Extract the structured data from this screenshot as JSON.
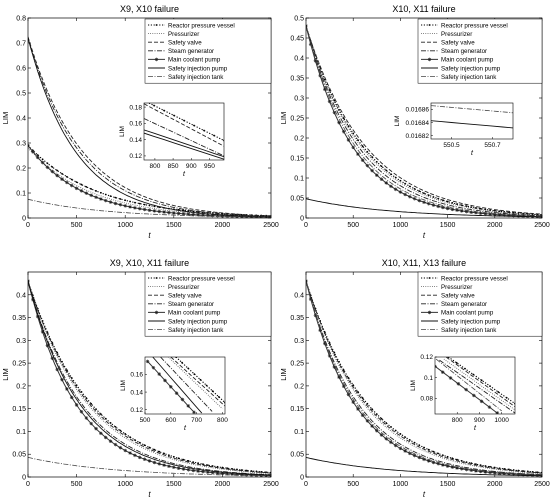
{
  "series_styles": {
    "Reactor pressure vessel": {
      "dash": "1.2,1.6",
      "width": 1.1,
      "color": "#000000",
      "marker": "dot"
    },
    "Pressurizer": {
      "dash": "0.8,1.4",
      "width": 0.9,
      "color": "#555555",
      "marker": "none"
    },
    "Safety valve": {
      "dash": "4,2",
      "width": 0.9,
      "color": "#222222",
      "marker": "none"
    },
    "Steam generator": {
      "dash": "5,1.5,1,1.5",
      "width": 0.9,
      "color": "#222222",
      "marker": "none"
    },
    "Main coolant pump": {
      "dash": "",
      "width": 1.0,
      "color": "#333333",
      "marker": "star"
    },
    "Safety injection pump": {
      "dash": "",
      "width": 0.9,
      "color": "#111111",
      "marker": "none"
    },
    "Safety injection tank": {
      "dash": "5,1.5,1,1.5",
      "width": 0.8,
      "color": "#444444",
      "marker": "none"
    }
  },
  "chart_data": [
    {
      "type": "line",
      "title": "X9, X10 failure",
      "xlabel": "t",
      "ylabel": "LIM",
      "xlim": [
        0,
        2500
      ],
      "ylim": [
        0,
        0.8
      ],
      "xticks": [
        0,
        500,
        1000,
        1500,
        2000,
        2500
      ],
      "yticks": [
        0,
        0.1,
        0.2,
        0.3,
        0.4,
        0.5,
        0.6,
        0.7,
        0.8
      ],
      "ytick_labels": [
        "0",
        "0.1",
        "0.2",
        "0.3",
        "0.4",
        "0.5",
        "0.6",
        "0.7",
        "0.8"
      ],
      "legend": "top-right",
      "series": [
        {
          "name": "Reactor pressure vessel",
          "y0": 0.29,
          "tau": 710
        },
        {
          "name": "Pressurizer",
          "y0": 0.28,
          "tau": 650
        },
        {
          "name": "Safety valve",
          "y0": 0.725,
          "tau": 560
        },
        {
          "name": "Steam generator",
          "y0": 0.72,
          "tau": 530
        },
        {
          "name": "Main coolant pump",
          "y0": 0.29,
          "tau": 560
        },
        {
          "name": "Safety injection pump",
          "y0": 0.72,
          "tau": 490
        },
        {
          "name": "Safety injection tank",
          "y0": 0.075,
          "tau": 800
        }
      ],
      "inset": {
        "xlim": [
          770,
          990
        ],
        "ylim": [
          0.115,
          0.185
        ],
        "xticks": [
          800,
          850,
          900,
          950
        ],
        "yticks": [
          0.12,
          0.14,
          0.16,
          0.18
        ],
        "ytick_labels": [
          "0.12",
          "0.14",
          "0.16",
          "0.18"
        ],
        "xlabel": "t",
        "ylabel": "LIM",
        "series": [
          {
            "name": "Safety valve",
            "x": [
              770,
              990
            ],
            "y": [
              0.184,
              0.132
            ]
          },
          {
            "name": "Steam generator",
            "x": [
              770,
              990
            ],
            "y": [
              0.166,
              0.12
            ]
          },
          {
            "name": "Safety injection pump",
            "x": [
              770,
              990
            ],
            "y": [
              0.148,
              0.116
            ]
          },
          {
            "name": "Safety injection pump",
            "x": [
              770,
              990
            ],
            "y": [
              0.152,
              0.119
            ]
          },
          {
            "name": "Reactor pressure vessel",
            "x": [
              770,
              990
            ],
            "y": [
              0.188,
              0.139
            ]
          }
        ]
      }
    },
    {
      "type": "line",
      "title": "X10, X11 failure",
      "xlabel": "t",
      "ylabel": "LIM",
      "xlim": [
        0,
        2500
      ],
      "ylim": [
        0,
        0.5
      ],
      "xticks": [
        0,
        500,
        1000,
        1500,
        2000,
        2500
      ],
      "yticks": [
        0,
        0.05,
        0.1,
        0.15,
        0.2,
        0.25,
        0.3,
        0.35,
        0.4,
        0.45,
        0.5
      ],
      "ytick_labels": [
        "0",
        "0.05",
        "0.1",
        "0.15",
        "0.2",
        "0.25",
        "0.3",
        "0.35",
        "0.4",
        "0.45",
        "0.5"
      ],
      "legend": "top-right",
      "series": [
        {
          "name": "Reactor pressure vessel",
          "y0": 0.48,
          "tau": 610
        },
        {
          "name": "Pressurizer",
          "y0": 0.48,
          "tau": 590
        },
        {
          "name": "Safety valve",
          "y0": 0.48,
          "tau": 640
        },
        {
          "name": "Steam generator",
          "y0": 0.48,
          "tau": 560
        },
        {
          "name": "Main coolant pump",
          "y0": 0.48,
          "tau": 500
        },
        {
          "name": "Safety injection pump",
          "y0": 0.048,
          "tau": 900
        },
        {
          "name": "Safety injection tank",
          "y0": 0.48,
          "tau": 530
        }
      ],
      "inset": {
        "xlim": [
          550.4,
          550.8
        ],
        "ylim": [
          0.016815,
          0.01687
        ],
        "xticks": [
          550.5,
          550.7
        ],
        "yticks": [
          0.01682,
          0.01684,
          0.01686
        ],
        "ytick_labels": [
          "0.01682",
          "0.01684",
          "0.01686"
        ],
        "xlabel": "t",
        "ylabel": "LIM",
        "series": [
          {
            "name": "Safety injection tank",
            "x": [
              550.4,
              550.8
            ],
            "y": [
              0.016866,
              0.016855
            ]
          },
          {
            "name": "Safety injection pump",
            "x": [
              550.4,
              550.8
            ],
            "y": [
              0.016843,
              0.016832
            ]
          }
        ]
      }
    },
    {
      "type": "line",
      "title": "X9, X10, X11 failure",
      "xlabel": "t",
      "ylabel": "LIM",
      "xlim": [
        0,
        2500
      ],
      "ylim": [
        0,
        0.45
      ],
      "xticks": [
        0,
        500,
        1000,
        1500,
        2000,
        2500
      ],
      "yticks": [
        0,
        0.05,
        0.1,
        0.15,
        0.2,
        0.25,
        0.3,
        0.35,
        0.4
      ],
      "ytick_labels": [
        "0",
        "0.05",
        "0.1",
        "0.15",
        "0.2",
        "0.25",
        "0.3",
        "0.35",
        "0.4"
      ],
      "legend": "top-right",
      "series": [
        {
          "name": "Reactor pressure vessel",
          "y0": 0.43,
          "tau": 660
        },
        {
          "name": "Pressurizer",
          "y0": 0.43,
          "tau": 620
        },
        {
          "name": "Safety valve",
          "y0": 0.43,
          "tau": 640
        },
        {
          "name": "Steam generator",
          "y0": 0.43,
          "tau": 560
        },
        {
          "name": "Main coolant pump",
          "y0": 0.43,
          "tau": 500
        },
        {
          "name": "Safety injection pump",
          "y0": 0.43,
          "tau": 540
        },
        {
          "name": "Safety injection tank",
          "y0": 0.043,
          "tau": 900
        }
      ],
      "inset": {
        "xlim": [
          500,
          810
        ],
        "ylim": [
          0.115,
          0.18
        ],
        "xticks": [
          500,
          600,
          700,
          800
        ],
        "yticks": [
          0.12,
          0.14,
          0.16
        ],
        "ytick_labels": [
          "0.12",
          "0.14",
          "0.16"
        ],
        "xlabel": "t",
        "ylabel": "LIM",
        "series": [
          {
            "name": "Reactor pressure vessel",
            "x": [
              620,
              810
            ],
            "y": [
              0.18,
              0.128
            ]
          },
          {
            "name": "Pressurizer",
            "x": [
              590,
              800
            ],
            "y": [
              0.18,
              0.121
            ]
          },
          {
            "name": "Safety valve",
            "x": [
              600,
              810
            ],
            "y": [
              0.18,
              0.124
            ]
          },
          {
            "name": "Steam generator",
            "x": [
              560,
              760
            ],
            "y": [
              0.18,
              0.118
            ]
          },
          {
            "name": "Safety injection pump",
            "x": [
              530,
              720
            ],
            "y": [
              0.18,
              0.116
            ]
          },
          {
            "name": "Main coolant pump",
            "x": [
              510,
              690
            ],
            "y": [
              0.175,
              0.117
            ]
          }
        ]
      }
    },
    {
      "type": "line",
      "title": "X10, X11, X13 failure",
      "xlabel": "t",
      "ylabel": "LIM",
      "xlim": [
        0,
        2500
      ],
      "ylim": [
        0,
        0.45
      ],
      "xticks": [
        0,
        500,
        1000,
        1500,
        2000,
        2500
      ],
      "yticks": [
        0,
        0.05,
        0.1,
        0.15,
        0.2,
        0.25,
        0.3,
        0.35,
        0.4
      ],
      "ytick_labels": [
        "0",
        "0.05",
        "0.1",
        "0.15",
        "0.2",
        "0.25",
        "0.3",
        "0.35",
        "0.4"
      ],
      "legend": "top-right",
      "series": [
        {
          "name": "Reactor pressure vessel",
          "y0": 0.43,
          "tau": 660
        },
        {
          "name": "Pressurizer",
          "y0": 0.43,
          "tau": 620
        },
        {
          "name": "Safety valve",
          "y0": 0.43,
          "tau": 640
        },
        {
          "name": "Steam generator",
          "y0": 0.43,
          "tau": 560
        },
        {
          "name": "Main coolant pump",
          "y0": 0.43,
          "tau": 520
        },
        {
          "name": "Safety injection pump",
          "y0": 0.043,
          "tau": 900
        },
        {
          "name": "Safety injection tank",
          "y0": 0.43,
          "tau": 540
        }
      ],
      "inset": {
        "xlim": [
          700,
          1060
        ],
        "ylim": [
          0.065,
          0.12
        ],
        "xticks": [
          800,
          900,
          1000
        ],
        "yticks": [
          0.08,
          0.1,
          0.12
        ],
        "ytick_labels": [
          "0.08",
          "0.1",
          "0.12"
        ],
        "xlabel": "t",
        "ylabel": "LIM",
        "series": [
          {
            "name": "Reactor pressure vessel",
            "x": [
              760,
              1060
            ],
            "y": [
              0.12,
              0.075
            ]
          },
          {
            "name": "Safety valve",
            "x": [
              750,
              1060
            ],
            "y": [
              0.12,
              0.072
            ]
          },
          {
            "name": "Pressurizer",
            "x": [
              740,
              1060
            ],
            "y": [
              0.118,
              0.069
            ]
          },
          {
            "name": "Steam generator",
            "x": [
              720,
              1060
            ],
            "y": [
              0.117,
              0.066
            ]
          },
          {
            "name": "Safety injection tank",
            "x": [
              705,
              1000
            ],
            "y": [
              0.118,
              0.068
            ]
          },
          {
            "name": "Main coolant pump",
            "x": [
              700,
              980
            ],
            "y": [
              0.111,
              0.066
            ]
          }
        ]
      }
    }
  ]
}
